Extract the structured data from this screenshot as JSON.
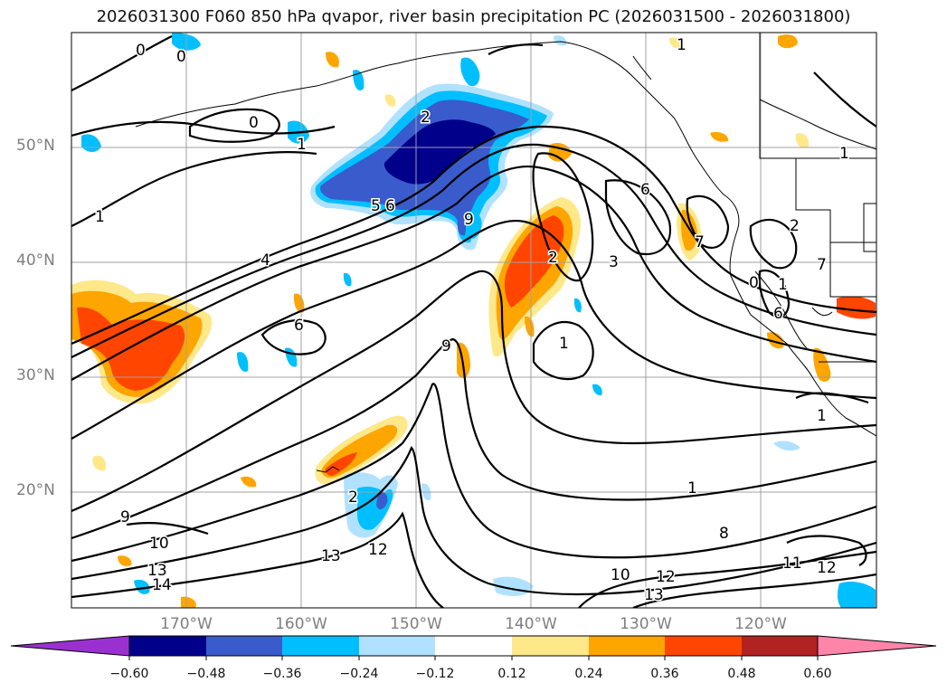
{
  "title": "2026031300 F060 850 hPa qvapor, river basin precipitation PC (2026031500 - 2026031800)",
  "map": {
    "lat_labels": [
      "50°N",
      "40°N",
      "30°N",
      "20°N"
    ],
    "lon_labels": [
      "170°W",
      "160°W",
      "150°W",
      "140°W",
      "130°W",
      "120°W"
    ],
    "contour_labels": [
      "0",
      "0",
      "0",
      "0",
      "1",
      "1",
      "1",
      "1",
      "1",
      "1",
      "1",
      "1",
      "2",
      "2",
      "2",
      "2",
      "3",
      "4",
      "5",
      "6",
      "6",
      "6",
      "6",
      "7",
      "7",
      "8",
      "9",
      "9",
      "9",
      "10",
      "10",
      "11",
      "12",
      "12",
      "12",
      "13",
      "13",
      "13",
      "14"
    ]
  },
  "colorbar": {
    "ticks": [
      "−0.60",
      "−0.48",
      "−0.36",
      "−0.24",
      "−0.12",
      "0.12",
      "0.24",
      "0.36",
      "0.48",
      "0.60"
    ],
    "colors": [
      "#9b30d0",
      "#00008b",
      "#3a5bcc",
      "#00bfff",
      "#b0e2ff",
      "#ffffff",
      "#ffe88a",
      "#ffa500",
      "#ff4500",
      "#b22222",
      "#ff85a8"
    ]
  }
}
